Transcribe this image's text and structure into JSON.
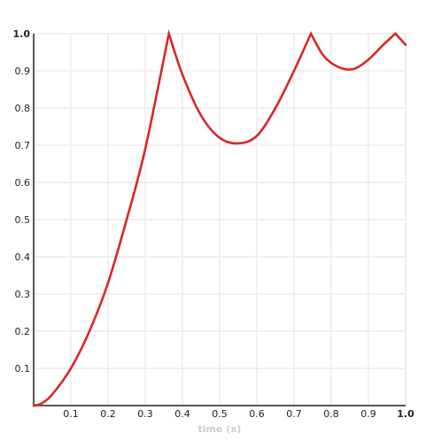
{
  "chart_data": {
    "type": "line",
    "title": "",
    "xlabel": "time (x)",
    "ylabel": "",
    "xlim": [
      0,
      1
    ],
    "ylim": [
      0,
      1
    ],
    "grid": true,
    "x_ticks": [
      "0.1",
      "0.2",
      "0.3",
      "0.4",
      "0.5",
      "0.6",
      "0.7",
      "0.8",
      "0.9",
      "1.0"
    ],
    "y_ticks": [
      "0.1",
      "0.2",
      "0.3",
      "0.4",
      "0.5",
      "0.6",
      "0.7",
      "0.8",
      "0.9",
      "1.0"
    ],
    "series": [
      {
        "color": "#d62728",
        "x": [
          0,
          0.02,
          0.05,
          0.1,
          0.15,
          0.2,
          0.25,
          0.3,
          0.3636,
          0.4,
          0.45,
          0.5,
          0.55,
          0.6,
          0.65,
          0.7,
          0.7455,
          0.78,
          0.82,
          0.86,
          0.9,
          0.94,
          0.9727,
          1.0
        ],
        "y": [
          0.0,
          0.005,
          0.03,
          0.1,
          0.2,
          0.33,
          0.5,
          0.69,
          1.0,
          0.89,
          0.78,
          0.72,
          0.705,
          0.725,
          0.8,
          0.9,
          1.0,
          0.94,
          0.91,
          0.905,
          0.93,
          0.97,
          1.0,
          0.97
        ]
      }
    ]
  }
}
